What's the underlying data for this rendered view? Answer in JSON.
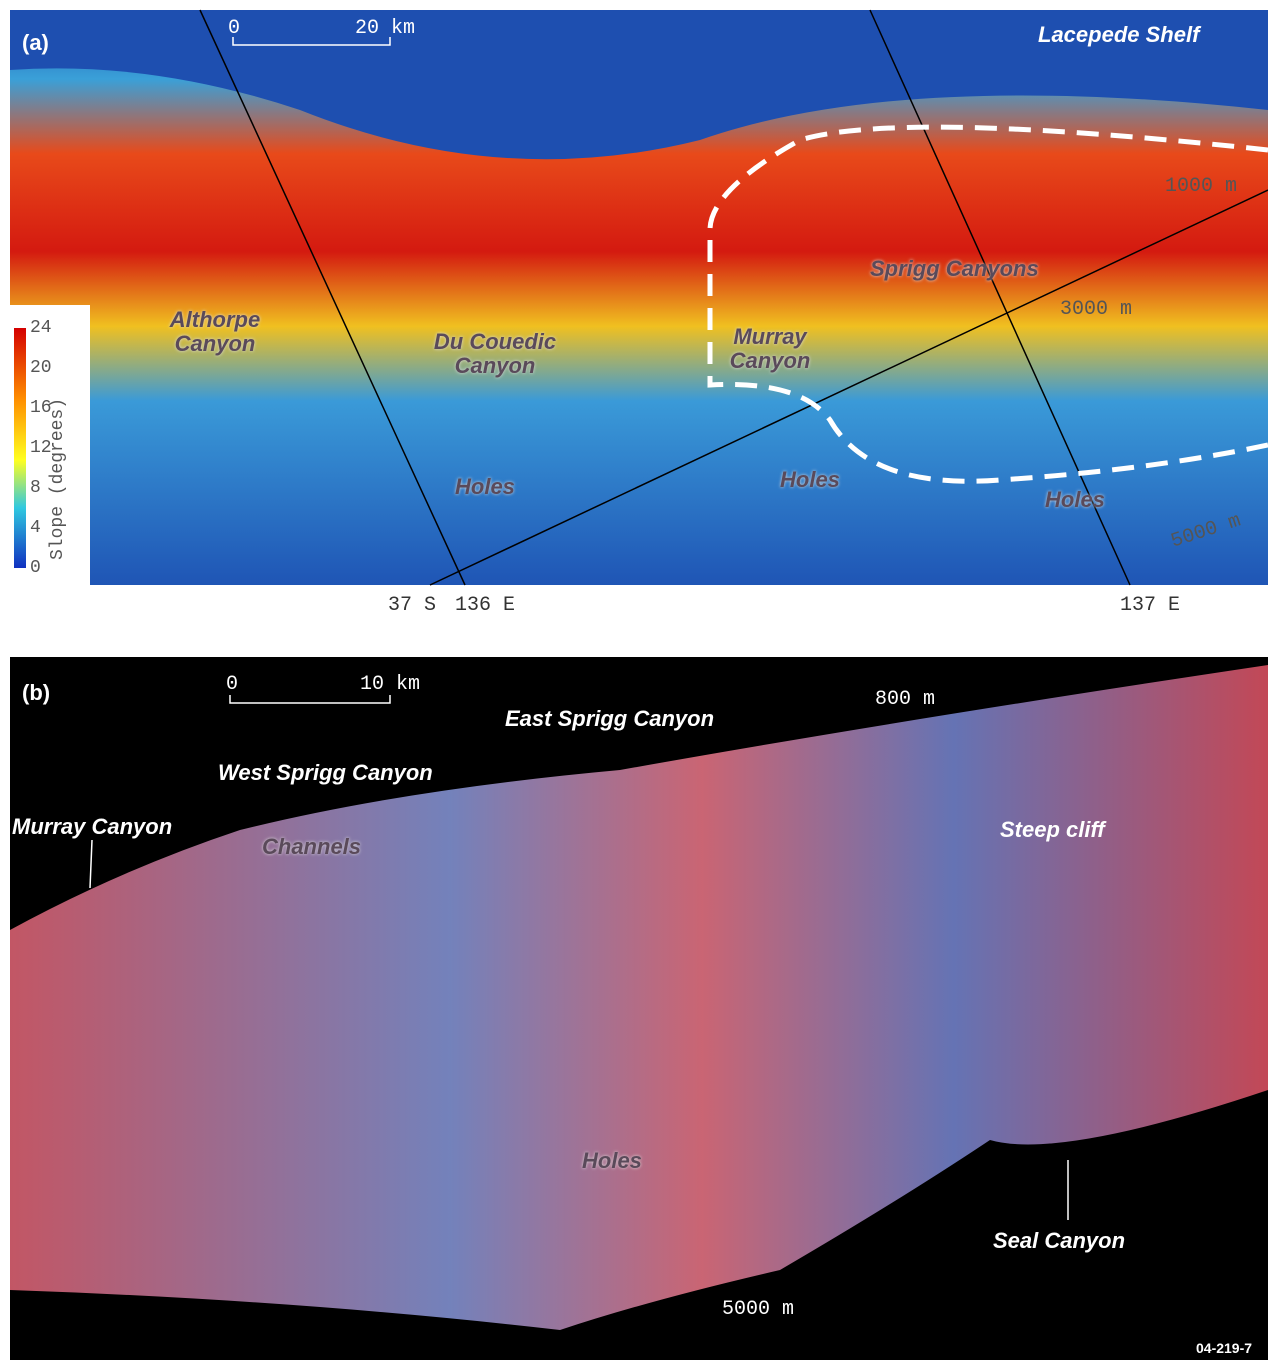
{
  "panel_a": {
    "label": "(a)",
    "scale_bar": {
      "start": "0",
      "end": "20 km"
    },
    "region": "Lacepede Shelf",
    "colorbar": {
      "title": "Slope (degrees)",
      "ticks": [
        24,
        20,
        16,
        12,
        8,
        4,
        0
      ]
    },
    "contours": [
      "1000 m",
      "3000 m",
      "5000 m"
    ],
    "places": [
      "Althorpe Canyon",
      "Du Couedic Canyon",
      "Murray Canyon",
      "Sprigg Canyons",
      "Holes",
      "Holes",
      "Holes"
    ],
    "coordinates": [
      "37 S",
      "136 E",
      "137 E"
    ]
  },
  "panel_b": {
    "label": "(b)",
    "scale_bar": {
      "start": "0",
      "end": "10 km"
    },
    "depths": [
      "800 m",
      "5000 m"
    ],
    "places": [
      "East Sprigg Canyon",
      "West Sprigg Canyon",
      "Murray Canyon",
      "Channels",
      "Steep cliff",
      "Holes",
      "Seal Canyon"
    ]
  },
  "figure_id": "04-219-7"
}
